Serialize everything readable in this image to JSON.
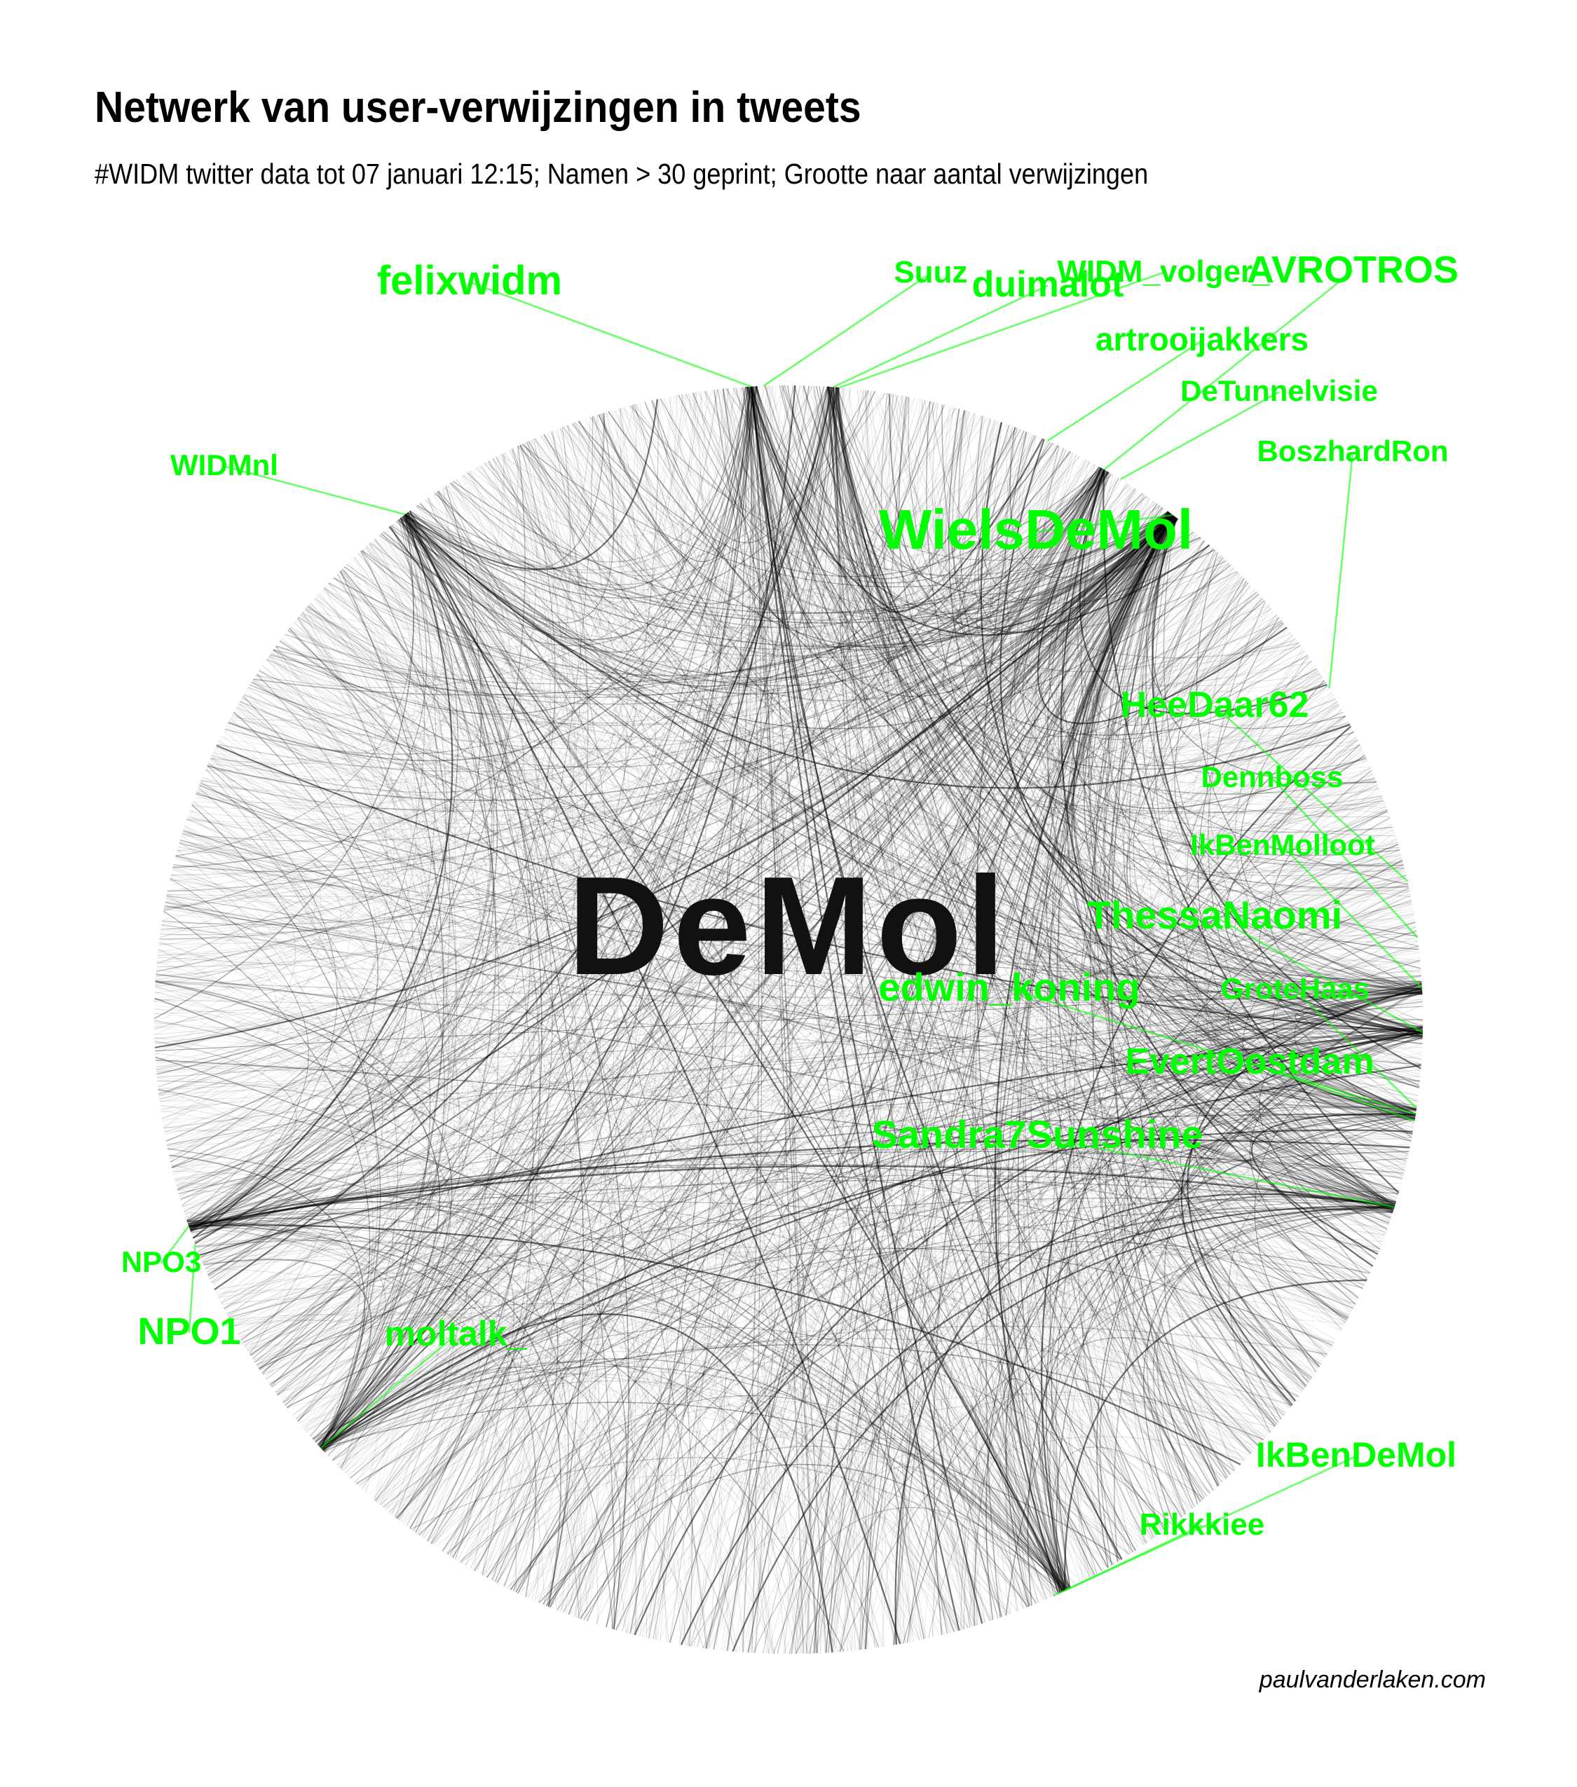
{
  "title": "Netwerk van user-verwijzingen in tweets",
  "subtitle": "#WIDM twitter data tot 07 januari 12:15; Namen > 30 geprint; Grootte naar aantal verwijzingen",
  "caption": "paulvanderlaken.com",
  "logo_text": "DeMol",
  "colors": {
    "label": "#00ff00",
    "edge": "#000000",
    "background": "#ffffff"
  },
  "nodes": [
    {
      "name": "felixwidm",
      "label": "felixwidm"
    },
    {
      "name": "Suuz",
      "label": "Suuz"
    },
    {
      "name": "duimalot",
      "label": "duimalot"
    },
    {
      "name": "WIDM_volger",
      "label": "WIDM_volger_"
    },
    {
      "name": "AVROTROS",
      "label": "AVROTROS"
    },
    {
      "name": "artrooijakkers",
      "label": "artrooijakkers"
    },
    {
      "name": "DeTunnelvisie",
      "label": "DeTunnelvisie"
    },
    {
      "name": "WIDMnl",
      "label": "WIDMnl"
    },
    {
      "name": "BoszhardRon",
      "label": "BoszhardRon"
    },
    {
      "name": "WielsDeMol",
      "label": "WielsDeMol"
    },
    {
      "name": "HeeDaar62",
      "label": "HeeDaar62"
    },
    {
      "name": "Dennboss",
      "label": "Dennboss"
    },
    {
      "name": "IkBenMolloot",
      "label": "IkBenMolloot"
    },
    {
      "name": "ThessaNaomi",
      "label": "ThessaNaomi"
    },
    {
      "name": "edwin_koning",
      "label": "edwin_koning"
    },
    {
      "name": "GroteHaas",
      "label": "GroteHaas"
    },
    {
      "name": "EvertOostdam",
      "label": "EvertOostdam"
    },
    {
      "name": "Sandra7Sunshine",
      "label": "Sandra7Sunshine"
    },
    {
      "name": "NPO3",
      "label": "NPO3"
    },
    {
      "name": "NPO1",
      "label": "NPO1"
    },
    {
      "name": "moltalk_",
      "label": "moltalk_"
    },
    {
      "name": "IkBenDeMol",
      "label": "IkBenDeMol"
    },
    {
      "name": "Rikkkiee",
      "label": "Rikkkiee"
    }
  ]
}
